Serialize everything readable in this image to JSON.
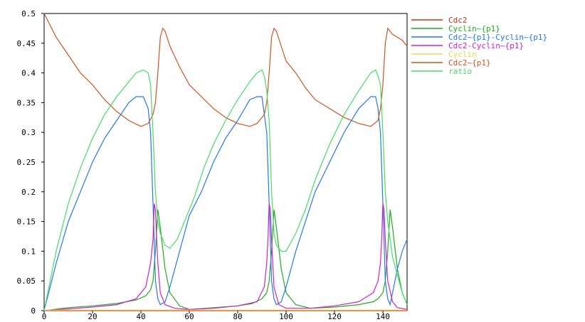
{
  "chart_data": {
    "type": "line",
    "title": "",
    "xlabel": "",
    "ylabel": "",
    "xlim": [
      0,
      150
    ],
    "ylim": [
      0,
      0.5
    ],
    "x_ticks": [
      0,
      20,
      40,
      60,
      80,
      100,
      120,
      140
    ],
    "y_ticks": [
      0,
      0.05,
      0.1,
      0.15,
      0.2,
      0.25,
      0.3,
      0.35,
      0.4,
      0.45,
      0.5
    ],
    "x_tick_labels": [
      "0",
      "20",
      "40",
      "60",
      "80",
      "100",
      "120",
      "140"
    ],
    "y_tick_labels": [
      "0",
      "0.05",
      "0.1",
      "0.15",
      "0.2",
      "0.25",
      "0.3",
      "0.35",
      "0.4",
      "0.45",
      "0.5"
    ],
    "grid": false,
    "legend_position": "right",
    "series": [
      {
        "name": "Cdc2",
        "color": "#cc3311",
        "x": [
          0,
          150
        ],
        "y": [
          0,
          0
        ]
      },
      {
        "name": "Cyclin~{p1}",
        "color": "#22aa22",
        "x": [
          0,
          10,
          20,
          30,
          38,
          42,
          44,
          45,
          46,
          47,
          48,
          50,
          52,
          56,
          60,
          70,
          80,
          86,
          90,
          92,
          93,
          94,
          95,
          96,
          98,
          100,
          104,
          110,
          120,
          130,
          136,
          138,
          140,
          141,
          142,
          143,
          144,
          146,
          148,
          150
        ],
        "y": [
          0.0,
          0.005,
          0.008,
          0.012,
          0.018,
          0.025,
          0.035,
          0.05,
          0.1,
          0.17,
          0.14,
          0.07,
          0.03,
          0.008,
          0.002,
          0.005,
          0.008,
          0.012,
          0.02,
          0.03,
          0.05,
          0.1,
          0.17,
          0.14,
          0.07,
          0.03,
          0.01,
          0.004,
          0.006,
          0.01,
          0.015,
          0.02,
          0.03,
          0.05,
          0.1,
          0.17,
          0.14,
          0.07,
          0.03,
          0.01
        ]
      },
      {
        "name": "Cdc2~{p1}-Cyclin~{p1}",
        "color": "#2277ee",
        "x": [
          0,
          5,
          10,
          15,
          20,
          25,
          30,
          35,
          38,
          41,
          43,
          44,
          45,
          46,
          47,
          48,
          50,
          52,
          56,
          60,
          65,
          70,
          75,
          80,
          85,
          88,
          90,
          91,
          92,
          93,
          94,
          95,
          96,
          98,
          100,
          104,
          108,
          112,
          118,
          124,
          130,
          135,
          137,
          138,
          139,
          140,
          141,
          142,
          143,
          144,
          146,
          148,
          150
        ],
        "y": [
          0.0,
          0.08,
          0.15,
          0.2,
          0.25,
          0.29,
          0.32,
          0.35,
          0.36,
          0.36,
          0.34,
          0.3,
          0.18,
          0.05,
          0.02,
          0.01,
          0.015,
          0.04,
          0.1,
          0.16,
          0.2,
          0.25,
          0.29,
          0.32,
          0.355,
          0.36,
          0.36,
          0.33,
          0.3,
          0.18,
          0.05,
          0.02,
          0.01,
          0.015,
          0.04,
          0.1,
          0.15,
          0.2,
          0.25,
          0.3,
          0.34,
          0.36,
          0.36,
          0.34,
          0.3,
          0.18,
          0.05,
          0.02,
          0.01,
          0.03,
          0.07,
          0.1,
          0.12
        ]
      },
      {
        "name": "Cdc2-Cyclin~{p1}",
        "color": "#cc22cc",
        "x": [
          0,
          10,
          20,
          30,
          38,
          42,
          44,
          45,
          45.5,
          46,
          46.5,
          47,
          48,
          50,
          54,
          60,
          70,
          80,
          88,
          91,
          92,
          92.5,
          93,
          93.5,
          94,
          95,
          97,
          100,
          110,
          120,
          130,
          136,
          138,
          139,
          139.5,
          140,
          140.5,
          141,
          142,
          144,
          146,
          150
        ],
        "y": [
          0,
          0.003,
          0.006,
          0.01,
          0.02,
          0.04,
          0.08,
          0.12,
          0.18,
          0.17,
          0.12,
          0.08,
          0.03,
          0.01,
          0.004,
          0.002,
          0.004,
          0.008,
          0.015,
          0.04,
          0.08,
          0.12,
          0.18,
          0.17,
          0.12,
          0.04,
          0.01,
          0.004,
          0.004,
          0.008,
          0.015,
          0.03,
          0.05,
          0.08,
          0.12,
          0.18,
          0.17,
          0.12,
          0.05,
          0.015,
          0.005,
          0.002
        ]
      },
      {
        "name": "Cyclin",
        "color": "#dddd55",
        "x": [
          0,
          150
        ],
        "y": [
          0.001,
          0.001
        ]
      },
      {
        "name": "Cdc2~{p1}",
        "color": "#cc5522",
        "x": [
          0,
          5,
          10,
          15,
          20,
          25,
          30,
          35,
          40,
          43,
          45,
          46,
          47,
          48,
          49,
          50,
          52,
          56,
          60,
          65,
          70,
          75,
          80,
          85,
          88,
          91,
          92,
          93,
          94,
          95,
          96,
          98,
          100,
          104,
          108,
          112,
          118,
          124,
          130,
          135,
          138,
          139,
          140,
          141,
          142,
          143,
          144,
          146,
          148,
          150
        ],
        "y": [
          0.5,
          0.46,
          0.43,
          0.4,
          0.38,
          0.355,
          0.335,
          0.32,
          0.31,
          0.315,
          0.33,
          0.35,
          0.4,
          0.46,
          0.475,
          0.47,
          0.445,
          0.41,
          0.38,
          0.36,
          0.34,
          0.325,
          0.315,
          0.31,
          0.315,
          0.33,
          0.35,
          0.4,
          0.46,
          0.475,
          0.47,
          0.445,
          0.42,
          0.4,
          0.375,
          0.355,
          0.34,
          0.325,
          0.315,
          0.31,
          0.32,
          0.34,
          0.38,
          0.45,
          0.475,
          0.47,
          0.465,
          0.46,
          0.455,
          0.445
        ]
      },
      {
        "name": "ratio",
        "color": "#44dd66",
        "x": [
          0,
          5,
          10,
          15,
          20,
          25,
          30,
          35,
          38,
          41,
          43,
          44,
          45,
          46,
          47,
          48,
          50,
          52,
          55,
          58,
          62,
          66,
          70,
          75,
          80,
          85,
          88,
          90,
          91,
          92,
          93,
          94,
          95,
          96,
          98,
          100,
          104,
          108,
          112,
          118,
          124,
          130,
          135,
          137,
          138,
          139,
          140,
          141,
          142,
          143,
          144,
          146,
          148,
          150
        ],
        "y": [
          0.0,
          0.1,
          0.18,
          0.24,
          0.29,
          0.33,
          0.36,
          0.385,
          0.4,
          0.405,
          0.4,
          0.38,
          0.3,
          0.2,
          0.15,
          0.13,
          0.11,
          0.105,
          0.12,
          0.15,
          0.19,
          0.24,
          0.28,
          0.32,
          0.355,
          0.385,
          0.4,
          0.405,
          0.395,
          0.37,
          0.32,
          0.2,
          0.13,
          0.11,
          0.1,
          0.1,
          0.13,
          0.17,
          0.22,
          0.28,
          0.33,
          0.37,
          0.4,
          0.405,
          0.395,
          0.38,
          0.3,
          0.2,
          0.15,
          0.12,
          0.09,
          0.06,
          0.03,
          0.01
        ]
      }
    ]
  }
}
